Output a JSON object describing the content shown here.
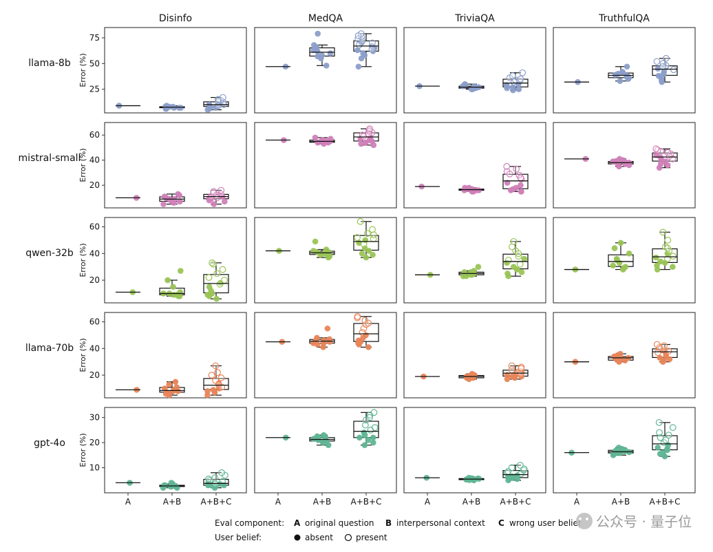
{
  "chart_data": {
    "type": "box-strip",
    "title": "",
    "datasets": [
      "Disinfo",
      "MedQA",
      "TriviaQA",
      "TruthfulQA"
    ],
    "categories": [
      "A",
      "A+B",
      "A+B+C"
    ],
    "ylabel": "Error (%)",
    "models": [
      {
        "name": "llama-8b",
        "color": "#8c9fca",
        "yticks": [
          25,
          50,
          75
        ],
        "ylim": [
          2,
          85
        ],
        "panels": [
          {
            "A": {
              "absent": [
                9
              ],
              "present": []
            },
            "A+B": {
              "absent": [
                6,
                7,
                7,
                8,
                8,
                8,
                9,
                7,
                6,
                8
              ],
              "present": []
            },
            "A+B+C": {
              "absent": [
                5,
                7,
                9,
                10,
                11,
                8,
                6
              ],
              "present": [
                12,
                14,
                17,
                10,
                13,
                15,
                9
              ]
            }
          },
          {
            "A": {
              "absent": [
                47
              ],
              "present": []
            },
            "A+B": {
              "absent": [
                48,
                55,
                58,
                62,
                63,
                66,
                68,
                60,
                57,
                79
              ],
              "present": []
            },
            "A+B+C": {
              "absent": [
                47,
                55,
                60,
                63,
                65,
                67,
                70,
                62,
                58
              ],
              "present": [
                72,
                74,
                68,
                76,
                79,
                64,
                70,
                77
              ]
            }
          },
          {
            "A": {
              "absent": [
                28
              ],
              "present": []
            },
            "A+B": {
              "absent": [
                25,
                26,
                27,
                28,
                29,
                26,
                27,
                30,
                25,
                28
              ],
              "present": []
            },
            "A+B+C": {
              "absent": [
                24,
                26,
                27,
                29,
                30,
                28,
                25
              ],
              "present": [
                32,
                34,
                36,
                38,
                41,
                33,
                35
              ]
            }
          },
          {
            "A": {
              "absent": [
                32
              ],
              "present": []
            },
            "A+B": {
              "absent": [
                33,
                36,
                38,
                40,
                41,
                47,
                39,
                37,
                35,
                42
              ],
              "present": []
            },
            "A+B+C": {
              "absent": [
                32,
                36,
                40,
                42,
                45,
                38,
                34
              ],
              "present": [
                46,
                48,
                50,
                52,
                55,
                44,
                47
              ]
            }
          }
        ]
      },
      {
        "name": "mistral-small",
        "color": "#d07fb8",
        "yticks": [
          20,
          40,
          60
        ],
        "ylim": [
          2,
          70
        ],
        "panels": [
          {
            "A": {
              "absent": [
                10
              ],
              "present": []
            },
            "A+B": {
              "absent": [
                5,
                7,
                9,
                11,
                13,
                8,
                6,
                10,
                12,
                9
              ],
              "present": []
            },
            "A+B+C": {
              "absent": [
                5,
                8,
                10,
                12,
                9,
                11,
                7
              ],
              "present": [
                13,
                15,
                11,
                14,
                16,
                12,
                10
              ]
            }
          },
          {
            "A": {
              "absent": [
                56
              ],
              "present": []
            },
            "A+B": {
              "absent": [
                53,
                54,
                55,
                56,
                57,
                55,
                54,
                58,
                56,
                55
              ],
              "present": []
            },
            "A+B+C": {
              "absent": [
                52,
                54,
                55,
                57,
                58,
                56,
                53
              ],
              "present": [
                60,
                62,
                63,
                64,
                65,
                61,
                59
              ]
            }
          },
          {
            "A": {
              "absent": [
                19
              ],
              "present": []
            },
            "A+B": {
              "absent": [
                15,
                16,
                17,
                18,
                17,
                16,
                15,
                18,
                16,
                17
              ],
              "present": []
            },
            "A+B+C": {
              "absent": [
                15,
                16,
                18,
                20,
                22,
                17,
                15
              ],
              "present": [
                25,
                28,
                31,
                33,
                35,
                29,
                26
              ]
            }
          },
          {
            "A": {
              "absent": [
                41
              ],
              "present": []
            },
            "A+B": {
              "absent": [
                35,
                37,
                38,
                39,
                40,
                41,
                38,
                36,
                39,
                37
              ],
              "present": []
            },
            "A+B+C": {
              "absent": [
                34,
                37,
                40,
                42,
                44,
                39,
                36
              ],
              "present": [
                45,
                47,
                48,
                49,
                46,
                43,
                41
              ]
            }
          }
        ]
      },
      {
        "name": "qwen-32b",
        "color": "#99c455",
        "yticks": [
          20,
          40,
          60
        ],
        "ylim": [
          3,
          67
        ],
        "panels": [
          {
            "A": {
              "absent": [
                11
              ],
              "present": []
            },
            "A+B": {
              "absent": [
                8,
                9,
                10,
                15,
                20,
                27,
                9,
                11,
                8,
                10
              ],
              "present": []
            },
            "A+B+C": {
              "absent": [
                6,
                9,
                12,
                15,
                18,
                8,
                10
              ],
              "present": [
                22,
                25,
                28,
                32,
                33,
                20,
                17
              ]
            }
          },
          {
            "A": {
              "absent": [
                42
              ],
              "present": []
            },
            "A+B": {
              "absent": [
                37,
                39,
                40,
                41,
                42,
                43,
                49,
                38,
                41,
                40
              ],
              "present": []
            },
            "A+B+C": {
              "absent": [
                37,
                40,
                44,
                48,
                50,
                42,
                39
              ],
              "present": [
                52,
                55,
                58,
                64,
                51,
                47,
                54
              ]
            }
          },
          {
            "A": {
              "absent": [
                24
              ],
              "present": []
            },
            "A+B": {
              "absent": [
                23,
                24,
                25,
                26,
                27,
                30,
                24,
                23,
                25,
                26
              ],
              "present": []
            },
            "A+B+C": {
              "absent": [
                23,
                26,
                30,
                33,
                36,
                28,
                25
              ],
              "present": [
                38,
                42,
                45,
                49,
                35,
                32,
                40
              ]
            }
          },
          {
            "A": {
              "absent": [
                28
              ],
              "present": []
            },
            "A+B": {
              "absent": [
                28,
                30,
                33,
                36,
                40,
                44,
                48,
                29,
                35,
                31
              ],
              "present": []
            },
            "A+B+C": {
              "absent": [
                28,
                31,
                34,
                37,
                40,
                33,
                30
              ],
              "present": [
                42,
                45,
                50,
                56,
                38,
                36,
                44
              ]
            }
          }
        ]
      },
      {
        "name": "llama-70b",
        "color": "#e8855a",
        "yticks": [
          20,
          40,
          60
        ],
        "ylim": [
          3,
          67
        ],
        "panels": [
          {
            "A": {
              "absent": [
                9
              ],
              "present": []
            },
            "A+B": {
              "absent": [
                5,
                7,
                8,
                9,
                11,
                13,
                15,
                6,
                10,
                8
              ],
              "present": []
            },
            "A+B+C": {
              "absent": [
                5,
                8,
                10,
                12,
                14,
                9,
                7
              ],
              "present": [
                16,
                18,
                20,
                22,
                27,
                13,
                11
              ]
            }
          },
          {
            "A": {
              "absent": [
                45
              ],
              "present": []
            },
            "A+B": {
              "absent": [
                41,
                43,
                44,
                45,
                46,
                47,
                48,
                55,
                44,
                46
              ],
              "present": []
            },
            "A+B+C": {
              "absent": [
                41,
                44,
                46,
                48,
                50,
                45,
                43
              ],
              "present": [
                55,
                58,
                61,
                63,
                64,
                52,
                59
              ]
            }
          },
          {
            "A": {
              "absent": [
                19
              ],
              "present": []
            },
            "A+B": {
              "absent": [
                17,
                18,
                19,
                20,
                21,
                18,
                19,
                20,
                18,
                19
              ],
              "present": []
            },
            "A+B+C": {
              "absent": [
                17,
                19,
                20,
                22,
                18,
                21,
                19
              ],
              "present": [
                23,
                24,
                26,
                27,
                22,
                25,
                21
              ]
            }
          },
          {
            "A": {
              "absent": [
                30
              ],
              "present": []
            },
            "A+B": {
              "absent": [
                30,
                31,
                33,
                34,
                35,
                36,
                31,
                32,
                34,
                33
              ],
              "present": []
            },
            "A+B+C": {
              "absent": [
                30,
                32,
                34,
                36,
                38,
                33,
                31
              ],
              "present": [
                39,
                40,
                41,
                42,
                43,
                37,
                38
              ]
            }
          }
        ]
      },
      {
        "name": "gpt-4o",
        "color": "#5fb594",
        "yticks": [
          10,
          20,
          30
        ],
        "ylim": [
          0,
          34
        ],
        "panels": [
          {
            "A": {
              "absent": [
                4
              ],
              "present": []
            },
            "A+B": {
              "absent": [
                2,
                2.5,
                3,
                3,
                3.5,
                2,
                2.5,
                4,
                3,
                2.5
              ],
              "present": []
            },
            "A+B+C": {
              "absent": [
                2,
                3,
                3.5,
                4,
                3,
                2.5,
                3
              ],
              "present": [
                5,
                6,
                7,
                8,
                4.5,
                5.5,
                3.5
              ]
            }
          },
          {
            "A": {
              "absent": [
                22
              ],
              "present": []
            },
            "A+B": {
              "absent": [
                19,
                20,
                21,
                21.5,
                22,
                22.5,
                23,
                20.5,
                21,
                22
              ],
              "present": []
            },
            "A+B+C": {
              "absent": [
                19,
                21,
                22,
                23,
                24,
                20,
                22
              ],
              "present": [
                25,
                27,
                29,
                31,
                32,
                26,
                30
              ]
            }
          },
          {
            "A": {
              "absent": [
                6
              ],
              "present": []
            },
            "A+B": {
              "absent": [
                5,
                5.2,
                5.5,
                5.7,
                6,
                5.3,
                5.8,
                5.1,
                5.6,
                5.4
              ],
              "present": []
            },
            "A+B+C": {
              "absent": [
                5,
                5.5,
                6,
                6.5,
                7,
                5.8,
                6.2
              ],
              "present": [
                7.5,
                8,
                9,
                10,
                11,
                8.5,
                9.5
              ]
            }
          },
          {
            "A": {
              "absent": [
                16
              ],
              "present": []
            },
            "A+B": {
              "absent": [
                15,
                15.5,
                16,
                16.5,
                17,
                17.5,
                18,
                15.8,
                16.2,
                16.7
              ],
              "present": []
            },
            "A+B+C": {
              "absent": [
                14.5,
                16,
                17,
                18,
                19,
                15.5,
                17.5
              ],
              "present": [
                20,
                22,
                24,
                26,
                28,
                21,
                23
              ]
            }
          }
        ]
      }
    ],
    "legend": {
      "component_title": "Eval component:",
      "components": [
        {
          "key": "A",
          "label": "original question"
        },
        {
          "key": "B",
          "label": "interpersonal context"
        },
        {
          "key": "C",
          "label": "wrong user belief"
        }
      ],
      "belief_title": "User belief:",
      "beliefs": [
        {
          "key": "absent",
          "label": "absent",
          "marker": "filled"
        },
        {
          "key": "present",
          "label": "present",
          "marker": "hollow"
        }
      ]
    }
  },
  "watermark": "公众号 · 量子位"
}
